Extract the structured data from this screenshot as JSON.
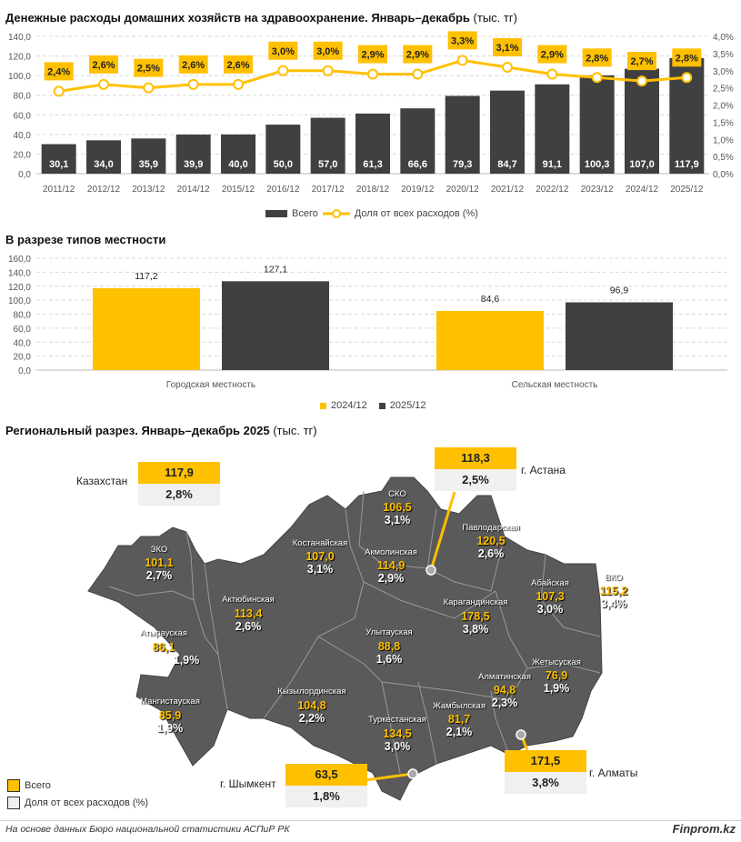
{
  "colors": {
    "bar_dark": "#404040",
    "accent": "#ffc000",
    "map": "#5a5a5a",
    "box_gray": "#f0f0f0"
  },
  "chart_data": [
    {
      "type": "bar+line",
      "title": "Денежные расходы домашних хозяйств на здравоохранение. Январь–декабрь",
      "title_unit": "(тыс. тг)",
      "categories": [
        "2011/12",
        "2012/12",
        "2013/12",
        "2014/12",
        "2015/12",
        "2016/12",
        "2017/12",
        "2018/12",
        "2019/12",
        "2020/12",
        "2021/12",
        "2022/12",
        "2023/12",
        "2024/12",
        "2025/12"
      ],
      "series": [
        {
          "name": "Всего",
          "type": "bar",
          "axis": "left",
          "values": [
            30.1,
            34.0,
            35.9,
            39.9,
            40.0,
            50.0,
            57.0,
            61.3,
            66.6,
            79.3,
            84.7,
            91.1,
            100.3,
            107.0,
            117.9
          ],
          "labels": [
            "30,1",
            "34,0",
            "35,9",
            "39,9",
            "40,0",
            "50,0",
            "57,0",
            "61,3",
            "66,6",
            "79,3",
            "84,7",
            "91,1",
            "100,3",
            "107,0",
            "117,9"
          ]
        },
        {
          "name": "Доля от всех расходов (%)",
          "type": "line",
          "axis": "right",
          "values": [
            2.4,
            2.6,
            2.5,
            2.6,
            2.6,
            3.0,
            3.0,
            2.9,
            2.9,
            3.3,
            3.1,
            2.9,
            2.8,
            2.7,
            2.8
          ],
          "labels": [
            "2,4%",
            "2,6%",
            "2,5%",
            "2,6%",
            "2,6%",
            "3,0%",
            "3,0%",
            "2,9%",
            "2,9%",
            "3,3%",
            "3,1%",
            "2,9%",
            "2,8%",
            "2,7%",
            "2,8%"
          ]
        }
      ],
      "ylim": [
        0,
        140
      ],
      "y2lim": [
        0,
        4
      ],
      "yticks": [
        "0,0",
        "20,0",
        "40,0",
        "60,0",
        "80,0",
        "100,0",
        "120,0",
        "140,0"
      ],
      "y2ticks": [
        "0,0%",
        "0,5%",
        "1,0%",
        "1,5%",
        "2,0%",
        "2,5%",
        "3,0%",
        "3,5%",
        "4,0%"
      ],
      "grid": true,
      "legend": "bottom"
    },
    {
      "type": "bar",
      "title": "В разрезе типов местности",
      "categories": [
        "Городская местность",
        "Сельская местность"
      ],
      "series": [
        {
          "name": "2024/12",
          "values": [
            117.2,
            84.6
          ],
          "labels": [
            "117,2",
            "84,6"
          ]
        },
        {
          "name": "2025/12",
          "values": [
            127.1,
            96.9
          ],
          "labels": [
            "127,1",
            "96,9"
          ]
        }
      ],
      "ylim": [
        0,
        160
      ],
      "yticks": [
        "0,0",
        "20,0",
        "40,0",
        "60,0",
        "80,0",
        "100,0",
        "120,0",
        "140,0",
        "160,0"
      ],
      "grid": true,
      "legend": "bottom"
    }
  ],
  "map": {
    "title": "Региональный разрез. Январь–декабрь 2025",
    "title_unit": "(тыс. тг)",
    "regions": [
      {
        "name": "СКО",
        "value": "106,5",
        "pct": "3,1%"
      },
      {
        "name": "Костанайская",
        "value": "107,0",
        "pct": "3,1%"
      },
      {
        "name": "Акмолинская",
        "value": "114,9",
        "pct": "2,9%"
      },
      {
        "name": "Павлодарская",
        "value": "120,5",
        "pct": "2,6%"
      },
      {
        "name": "ЗКО",
        "value": "101,1",
        "pct": "2,7%"
      },
      {
        "name": "Атырауская",
        "value": "86,1",
        "pct": "1,9%"
      },
      {
        "name": "Актюбинская",
        "value": "113,4",
        "pct": "2,6%"
      },
      {
        "name": "Абайская",
        "value": "107,3",
        "pct": "3,0%"
      },
      {
        "name": "ВКО",
        "value": "115,2",
        "pct": "3,4%"
      },
      {
        "name": "Карагандинская",
        "value": "178,5",
        "pct": "3,8%"
      },
      {
        "name": "Улытауская",
        "value": "88,8",
        "pct": "1,6%"
      },
      {
        "name": "Жетысуская",
        "value": "76,9",
        "pct": "1,9%"
      },
      {
        "name": "Алматинская",
        "value": "94,8",
        "pct": "2,3%"
      },
      {
        "name": "Мангистауская",
        "value": "85,9",
        "pct": "1,9%"
      },
      {
        "name": "Кызылординская",
        "value": "104,8",
        "pct": "2,2%"
      },
      {
        "name": "Жамбылская",
        "value": "81,7",
        "pct": "2,1%"
      },
      {
        "name": "Туркестанская",
        "value": "134,5",
        "pct": "3,0%"
      }
    ],
    "callouts": [
      {
        "name": "Казахстан",
        "value": "117,9",
        "pct": "2,8%"
      },
      {
        "name": "г. Астана",
        "value": "118,3",
        "pct": "2,5%"
      },
      {
        "name": "г. Шымкент",
        "value": "63,5",
        "pct": "1,8%"
      },
      {
        "name": "г. Алматы",
        "value": "171,5",
        "pct": "3,8%"
      }
    ],
    "legend": [
      "Всего",
      "Доля от всех расходов (%)"
    ]
  },
  "footer": {
    "source": "На основе данных Бюро национальной статистики АСПиР РК",
    "brand": "Finprom.kz"
  }
}
